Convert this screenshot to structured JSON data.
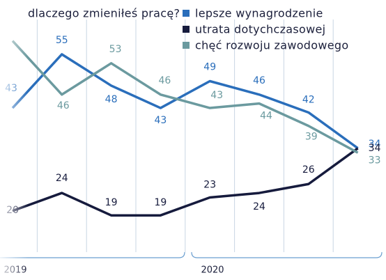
{
  "chart_data": {
    "type": "line",
    "legend_title": "dlaczego zmieniłeś pracę?",
    "categories": [
      null,
      null,
      null,
      null,
      null,
      null,
      null,
      null
    ],
    "groups": [
      "2019",
      "2020"
    ],
    "series": [
      {
        "name": "lepsze wynagrodzenie",
        "color": "#2a6ebb",
        "values": [
          43,
          55,
          48,
          43,
          49,
          46,
          42,
          34
        ]
      },
      {
        "name": "utrata dotychczasowej",
        "color": "#161b3d",
        "values": [
          20,
          24,
          19,
          19,
          23,
          24,
          26,
          34
        ]
      },
      {
        "name": "chęć rozwoju zawodowego",
        "color": "#6b9a9f",
        "values": [
          58,
          46,
          53,
          46,
          43,
          44,
          39,
          33
        ]
      }
    ],
    "ylim": [
      10,
      62
    ],
    "grid": true
  }
}
